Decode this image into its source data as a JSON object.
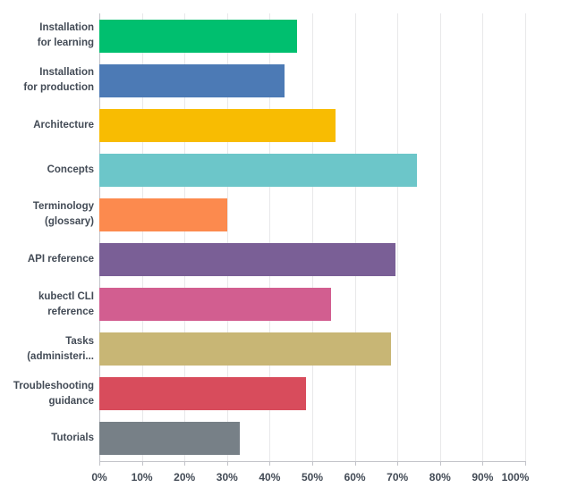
{
  "chart_data": {
    "type": "bar",
    "orientation": "horizontal",
    "title": "",
    "xlabel": "",
    "ylabel": "",
    "grid": "vertical",
    "legend": "none",
    "x_axis": {
      "min": 0,
      "max": 100,
      "tick_step": 10,
      "format": "percent",
      "tick_labels": [
        "0%",
        "10%",
        "20%",
        "30%",
        "40%",
        "50%",
        "60%",
        "70%",
        "80%",
        "90%",
        "100%"
      ]
    },
    "categories": [
      "Installation for learning",
      "Installation for production",
      "Architecture",
      "Concepts",
      "Terminology (glossary)",
      "API reference",
      "kubectl CLI reference",
      "Tasks (administeri...",
      "Troubleshooting guidance",
      "Tutorials"
    ],
    "values": [
      46.5,
      43.5,
      55.5,
      74.5,
      30,
      69.5,
      54.5,
      68.5,
      48.5,
      33
    ],
    "rows": [
      {
        "label": "Installation for learning",
        "label_lines": [
          "Installation",
          "for learning"
        ],
        "value": 46.5,
        "color": "#00bf6f"
      },
      {
        "label": "Installation for production",
        "label_lines": [
          "Installation",
          "for production"
        ],
        "value": 43.5,
        "color": "#4c7ab5"
      },
      {
        "label": "Architecture",
        "label_lines": [
          "Architecture"
        ],
        "value": 55.5,
        "color": "#f8bc02"
      },
      {
        "label": "Concepts",
        "label_lines": [
          "Concepts"
        ],
        "value": 74.5,
        "color": "#6cc6c9"
      },
      {
        "label": "Terminology (glossary)",
        "label_lines": [
          "Terminology",
          "(glossary)"
        ],
        "value": 30,
        "color": "#fc8a4e"
      },
      {
        "label": "API reference",
        "label_lines": [
          "API reference"
        ],
        "value": 69.5,
        "color": "#7a5f96"
      },
      {
        "label": "kubectl CLI reference",
        "label_lines": [
          "kubectl CLI",
          "reference"
        ],
        "value": 54.5,
        "color": "#d25e90"
      },
      {
        "label": "Tasks (administeri...",
        "label_lines": [
          "Tasks",
          "(administeri..."
        ],
        "value": 68.5,
        "color": "#c8b675"
      },
      {
        "label": "Troubleshooting guidance",
        "label_lines": [
          "Troubleshooting",
          "guidance"
        ],
        "value": 48.5,
        "color": "#d84c5c"
      },
      {
        "label": "Tutorials",
        "label_lines": [
          "Tutorials"
        ],
        "value": 33,
        "color": "#778087"
      }
    ],
    "colors": {
      "grid": "#e8e8ea",
      "axis": "#c2c3c9",
      "text": "#434b56",
      "background": "#ffffff"
    }
  }
}
